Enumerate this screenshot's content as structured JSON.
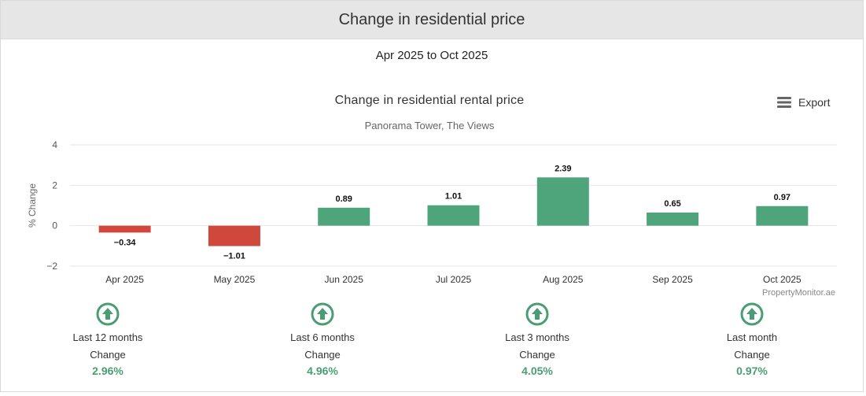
{
  "header": {
    "title": "Change in residential price"
  },
  "date_range": "Apr 2025 to Oct 2025",
  "export_label": "Export",
  "credit": "PropertyMonitor.ae",
  "colors": {
    "positive": "#4fa57b",
    "negative": "#d0473c",
    "stat_green": "#4a9d73"
  },
  "chart_data": {
    "type": "bar",
    "title": "Change in residential rental price",
    "subtitle": "Panorama Tower, The Views",
    "xlabel": "",
    "ylabel": "% Change",
    "ylim": [
      -2,
      4
    ],
    "yticks": [
      -2,
      0,
      2,
      4
    ],
    "ytick_labels": [
      "−2",
      "0",
      "2",
      "4"
    ],
    "grid": true,
    "categories": [
      "Apr 2025",
      "May 2025",
      "Jun 2025",
      "Jul 2025",
      "Aug 2025",
      "Sep 2025",
      "Oct 2025"
    ],
    "values": [
      -0.34,
      -1.01,
      0.89,
      1.01,
      2.39,
      0.65,
      0.97
    ],
    "value_labels": [
      "−0.34",
      "−1.01",
      "0.89",
      "1.01",
      "2.39",
      "0.65",
      "0.97"
    ]
  },
  "stats": [
    {
      "icon": "arrow-up-circle-icon",
      "period": "Last 12 months",
      "label": "Change",
      "value": "2.96%"
    },
    {
      "icon": "arrow-up-circle-icon",
      "period": "Last 6 months",
      "label": "Change",
      "value": "4.96%"
    },
    {
      "icon": "arrow-up-circle-icon",
      "period": "Last 3 months",
      "label": "Change",
      "value": "4.05%"
    },
    {
      "icon": "arrow-up-circle-icon",
      "period": "Last month",
      "label": "Change",
      "value": "0.97%"
    }
  ]
}
